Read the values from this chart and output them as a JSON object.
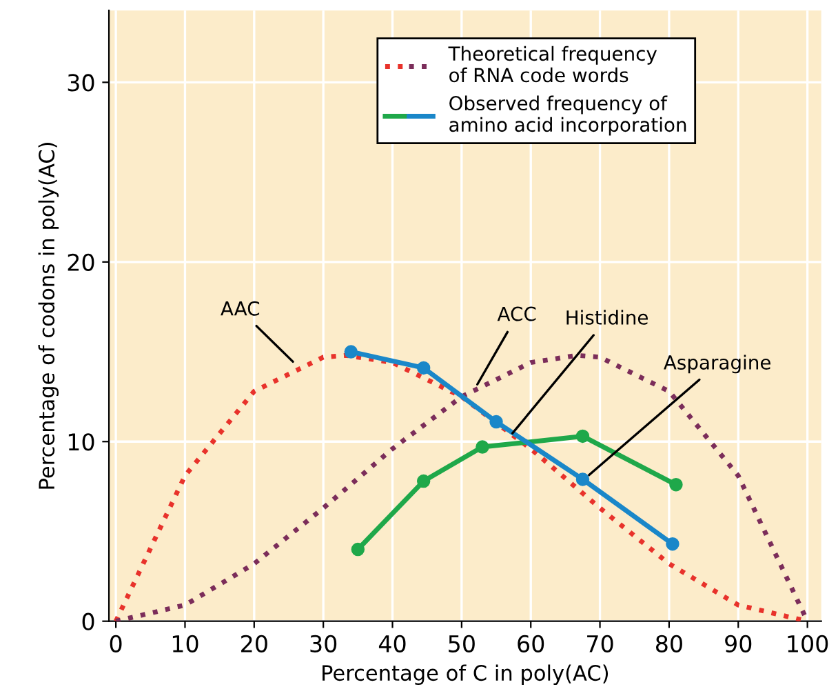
{
  "chart_data": {
    "type": "line",
    "xlabel": "Percentage of C in poly(AC)",
    "ylabel": "Percentage of codons in poly(AC)",
    "xlim": [
      -1,
      102
    ],
    "ylim": [
      0,
      34
    ],
    "xticks": [
      0,
      10,
      20,
      30,
      40,
      50,
      60,
      70,
      80,
      90,
      100
    ],
    "yticks": [
      0,
      10,
      20,
      30
    ],
    "grid": true,
    "legend": "top",
    "series": [
      {
        "name": "Theoretical frequency\nof RNA code words",
        "color": "#e8322b",
        "line_style": "dotted",
        "marker": "none",
        "x": [
          0,
          10,
          20,
          30,
          33.3,
          40,
          50,
          60,
          70,
          80,
          90,
          100
        ],
        "values": [
          0,
          8.1,
          12.8,
          14.7,
          14.8,
          14.4,
          12.5,
          9.6,
          6.3,
          3.2,
          0.9,
          0
        ]
      },
      {
        "color": "#7b2d5a",
        "line_style": "dotted",
        "marker": "none",
        "x": [
          0,
          10,
          20,
          30,
          40,
          50,
          60,
          66.7,
          70,
          80,
          90,
          100
        ],
        "values": [
          0,
          0.9,
          3.2,
          6.3,
          9.6,
          12.5,
          14.4,
          14.8,
          14.7,
          12.8,
          8.1,
          0
        ]
      },
      {
        "name": "Observed frequency of\namino acid incorporation",
        "color": "#1fa84a",
        "line_style": "solid",
        "marker": "circle",
        "x": [
          35,
          44.5,
          53,
          67.5,
          81
        ],
        "values": [
          4,
          7.8,
          9.7,
          10.3,
          7.6
        ]
      },
      {
        "color": "#1a87c9",
        "line_style": "solid",
        "marker": "circle",
        "x": [
          34,
          44.5,
          55,
          67.5,
          80.5
        ],
        "values": [
          15,
          14.1,
          11.1,
          7.9,
          4.3
        ]
      }
    ],
    "annotations": [
      {
        "text": "AAC",
        "x": 26,
        "y": 14.3
      },
      {
        "text": "ACC",
        "x": 52,
        "y": 13
      },
      {
        "text": "Histidine",
        "x": 57,
        "y": 10.3
      },
      {
        "text": "Asparagine",
        "x": 68,
        "y": 8
      }
    ]
  }
}
